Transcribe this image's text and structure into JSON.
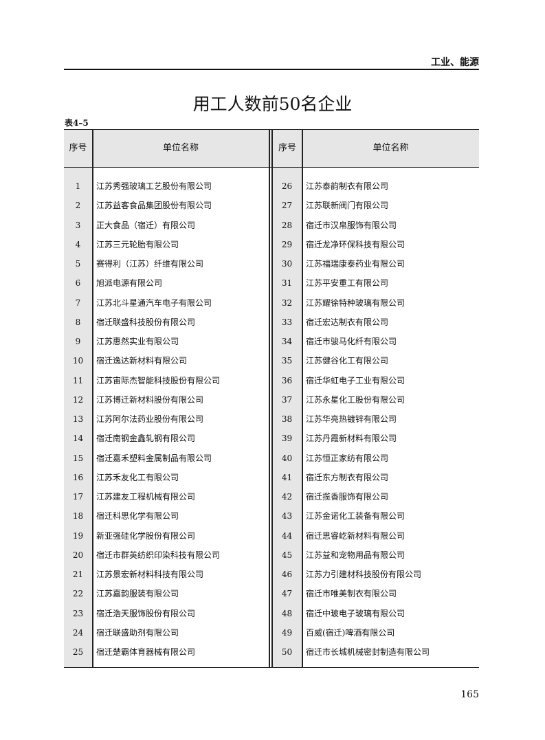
{
  "header": {
    "section": "工业、能源"
  },
  "title": "用工人数前50名企业",
  "table_number": "表4–5",
  "columns": {
    "seq": "序号",
    "name": "单位名称"
  },
  "left": [
    {
      "n": "1",
      "name": "江苏秀强玻璃工艺股份有限公司"
    },
    {
      "n": "2",
      "name": "江苏益客食品集团股份有限公司"
    },
    {
      "n": "3",
      "name": "正大食品（宿迁）有限公司"
    },
    {
      "n": "4",
      "name": "江苏三元轮胎有限公司"
    },
    {
      "n": "5",
      "name": "赛得利（江苏）纤维有限公司"
    },
    {
      "n": "6",
      "name": "旭派电源有限公司"
    },
    {
      "n": "7",
      "name": "江苏北斗星通汽车电子有限公司"
    },
    {
      "n": "8",
      "name": "宿迁联盛科技股份有限公司"
    },
    {
      "n": "9",
      "name": "江苏惠然实业有限公司"
    },
    {
      "n": "10",
      "name": "宿迁逸达新材料有限公司"
    },
    {
      "n": "11",
      "name": "江苏宙际杰智能科技股份有限公司"
    },
    {
      "n": "12",
      "name": "江苏博迁新材料股份有限公司"
    },
    {
      "n": "13",
      "name": "江苏阿尔法药业股份有限公司"
    },
    {
      "n": "14",
      "name": "宿迁南钢金鑫轧钢有限公司"
    },
    {
      "n": "15",
      "name": "宿迁嘉禾塑料金属制品有限公司"
    },
    {
      "n": "16",
      "name": "江苏禾友化工有限公司"
    },
    {
      "n": "17",
      "name": "江苏建友工程机械有限公司"
    },
    {
      "n": "18",
      "name": "宿迁科思化学有限公司"
    },
    {
      "n": "19",
      "name": "新亚强硅化学股份有限公司"
    },
    {
      "n": "20",
      "name": "宿迁市群英纺织印染科技有限公司"
    },
    {
      "n": "21",
      "name": "江苏景宏新材料科技有限公司"
    },
    {
      "n": "22",
      "name": "江苏嘉韵服装有限公司"
    },
    {
      "n": "23",
      "name": "宿迁浩天服饰股份有限公司"
    },
    {
      "n": "24",
      "name": "宿迁联盛助剂有限公司"
    },
    {
      "n": "25",
      "name": "宿迁楚霸体育器械有限公司"
    }
  ],
  "right": [
    {
      "n": "26",
      "name": "江苏泰韵制衣有限公司"
    },
    {
      "n": "27",
      "name": "江苏联新阀门有限公司"
    },
    {
      "n": "28",
      "name": "宿迁市汉帛服饰有限公司"
    },
    {
      "n": "29",
      "name": "宿迁龙净环保科技有限公司"
    },
    {
      "n": "30",
      "name": "江苏福瑞康泰药业有限公司"
    },
    {
      "n": "31",
      "name": "江苏平安重工有限公司"
    },
    {
      "n": "32",
      "name": "江苏耀徐特种玻璃有限公司"
    },
    {
      "n": "33",
      "name": "宿迁宏达制衣有限公司"
    },
    {
      "n": "34",
      "name": "宿迁市骏马化纤有限公司"
    },
    {
      "n": "35",
      "name": "江苏健谷化工有限公司"
    },
    {
      "n": "36",
      "name": "宿迁华虹电子工业有限公司"
    },
    {
      "n": "37",
      "name": "江苏永星化工股份有限公司"
    },
    {
      "n": "38",
      "name": "江苏华亮热镀锌有限公司"
    },
    {
      "n": "39",
      "name": "江苏丹霞新材料有限公司"
    },
    {
      "n": "40",
      "name": "江苏恒正家纺有限公司"
    },
    {
      "n": "41",
      "name": "宿迁东方制衣有限公司"
    },
    {
      "n": "42",
      "name": "宿迁揽香服饰有限公司"
    },
    {
      "n": "43",
      "name": "江苏金诺化工装备有限公司"
    },
    {
      "n": "44",
      "name": "宿迁思睿屹新材料有限公司"
    },
    {
      "n": "45",
      "name": "江苏益和宠物用品有限公司"
    },
    {
      "n": "46",
      "name": "江苏力引建材科技股份有限公司"
    },
    {
      "n": "47",
      "name": "宿迁市唯美制衣有限公司"
    },
    {
      "n": "48",
      "name": "宿迁中玻电子玻璃有限公司"
    },
    {
      "n": "49",
      "name": "百威(宿迁)啤酒有限公司"
    },
    {
      "n": "50",
      "name": "宿迁市长城机械密封制造有限公司"
    }
  ],
  "page_number": "165"
}
